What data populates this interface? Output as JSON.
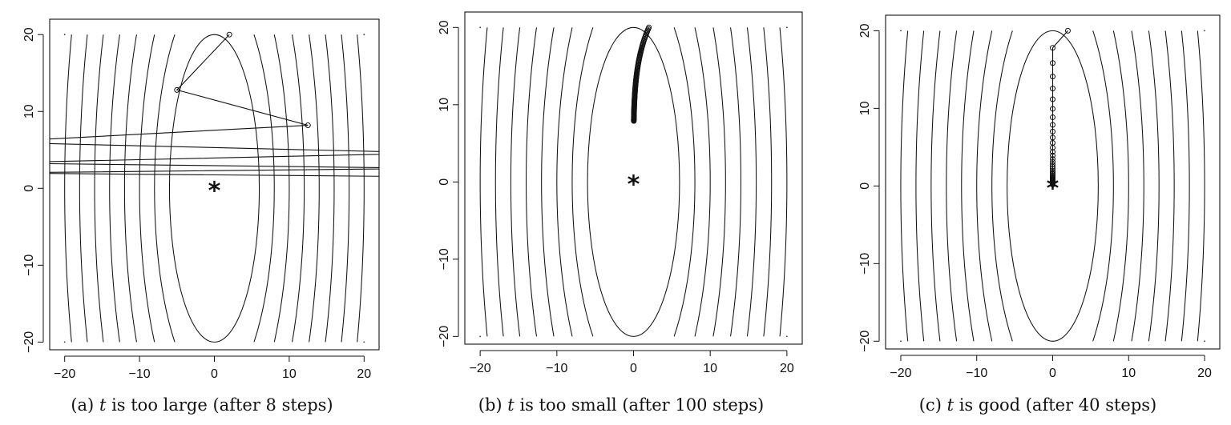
{
  "chart_data": [
    {
      "type": "line",
      "subtype": "contour-with-iterate-path",
      "caption": {
        "label": "(a)",
        "var": "t",
        "rest": "is too large (after 8 steps)"
      },
      "xlim": [
        -22,
        22
      ],
      "ylim": [
        -21,
        22
      ],
      "xticks": [
        -20,
        -10,
        0,
        10,
        20
      ],
      "yticks": [
        -20,
        -10,
        0,
        10,
        20
      ],
      "contour_function": "f(x,y) = x^2 + 0.09*y^2",
      "contour_levels": [
        36,
        64,
        100,
        144,
        196,
        256,
        324,
        400
      ],
      "minimum": {
        "x": 0,
        "y": 0,
        "symbol": "*"
      },
      "path": {
        "x": [
          2,
          -5,
          12.5,
          -30,
          30,
          -30,
          30,
          -30,
          30
        ],
        "y": [
          20,
          12.8,
          8.2,
          6.0,
          4.6,
          3.3,
          2.6,
          2.0,
          1.5
        ]
      },
      "markers_shown": 3
    },
    {
      "type": "line",
      "subtype": "contour-with-iterate-path",
      "caption": {
        "label": "(b)",
        "var": "t",
        "rest": "is too small (after 100 steps)"
      },
      "xlim": [
        -22,
        22
      ],
      "ylim": [
        -21,
        22
      ],
      "xticks": [
        -20,
        -10,
        0,
        10,
        20
      ],
      "yticks": [
        -20,
        -10,
        0,
        10,
        20
      ],
      "contour_function": "f(x,y) = x^2 + 0.09*y^2",
      "contour_levels": [
        36,
        64,
        100,
        144,
        196,
        256,
        324,
        400
      ],
      "minimum": {
        "x": 0,
        "y": 0,
        "symbol": "*"
      },
      "path_model": {
        "x0": 2,
        "y0": 20,
        "x_factor": 0.96,
        "y_factor": 0.99075,
        "steps": 100
      },
      "markers_shown": 101
    },
    {
      "type": "line",
      "subtype": "contour-with-iterate-path",
      "caption": {
        "label": "(c)",
        "var": "t",
        "rest": "is good (after 40 steps)"
      },
      "xlim": [
        -22,
        22
      ],
      "ylim": [
        -21,
        22
      ],
      "xticks": [
        -20,
        -10,
        0,
        10,
        20
      ],
      "yticks": [
        -20,
        -10,
        0,
        10,
        20
      ],
      "contour_function": "f(x,y) = x^2 + 0.09*y^2",
      "contour_levels": [
        36,
        64,
        100,
        144,
        196,
        256,
        324,
        400
      ],
      "minimum": {
        "x": 0,
        "y": 0,
        "symbol": "*"
      },
      "path_model": {
        "x0": 2,
        "y0": 20,
        "x_factor": 0,
        "y_factor": 0.89,
        "steps": 40
      },
      "markers_shown": 41
    }
  ]
}
